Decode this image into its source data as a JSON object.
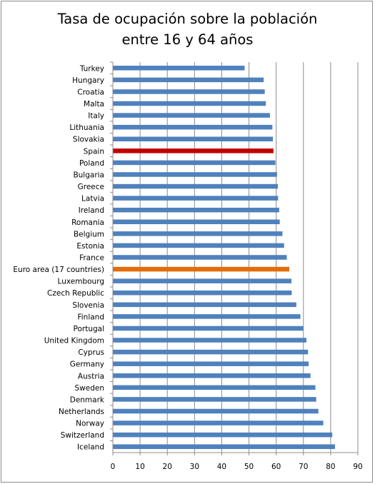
{
  "chart_data": {
    "type": "bar",
    "orientation": "horizontal",
    "title_lines": [
      "Tasa de ocupación sobre la población",
      "entre 16 y 64 años"
    ],
    "categories": [
      "Turkey",
      "Hungary",
      "Croatia",
      "Malta",
      "Italy",
      "Lithuania",
      "Slovakia",
      "Spain",
      "Poland",
      "Bulgaria",
      "Greece",
      "Latvia",
      "Ireland",
      "Romania",
      "Belgium",
      "Estonia",
      "France",
      "Euro area (17 countries)",
      "Luxembourg",
      "Czech Republic",
      "Slovenia",
      "Finland",
      "Portugal",
      "United Kingdom",
      "Cyprus",
      "Germany",
      "Austria",
      "Sweden",
      "Denmark",
      "Netherlands",
      "Norway",
      "Switzerland",
      "Iceland"
    ],
    "values": [
      48.4,
      55.4,
      55.8,
      56.2,
      57.7,
      58.6,
      58.8,
      59.0,
      59.7,
      60.3,
      60.6,
      60.7,
      61.1,
      61.3,
      62.3,
      62.9,
      63.9,
      64.8,
      65.6,
      65.7,
      67.4,
      68.9,
      69.9,
      71.1,
      71.7,
      71.9,
      72.6,
      74.4,
      74.7,
      75.5,
      77.3,
      80.6,
      81.6
    ],
    "colors": {
      "default": "#4f81bd",
      "Spain": "#c00000",
      "Euro area (17 countries)": "#e46c0a"
    },
    "xlim": [
      0,
      90
    ],
    "xticks": [
      0,
      10,
      20,
      30,
      40,
      50,
      60,
      70,
      80,
      90
    ],
    "grid": true,
    "legend": "none"
  }
}
